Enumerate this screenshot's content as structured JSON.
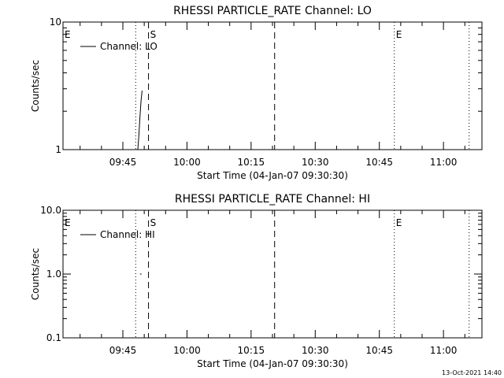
{
  "footer": {
    "timestamp": "13-Oct-2021 14:40"
  },
  "chart_data": [
    {
      "type": "line",
      "title": "RHESSI PARTICLE_RATE Channel: LO",
      "xlabel": "Start Time (04-Jan-07 09:30:30)",
      "ylabel": "Counts/sec",
      "yscale": "log",
      "ylim": [
        1,
        10
      ],
      "yticks": [
        1,
        10
      ],
      "ytick_labels": [
        "1",
        "10"
      ],
      "xlim": [
        "09:31",
        "11:09"
      ],
      "xticks": [
        "09:45",
        "10:00",
        "10:15",
        "10:30",
        "10:45",
        "11:00"
      ],
      "legend": {
        "label": "Channel: LO",
        "placement": "top-left"
      },
      "series": [
        {
          "name": "Channel: LO",
          "x": [
            "09:48:30",
            "09:48:45",
            "09:49:00",
            "09:49:15",
            "09:49:30"
          ],
          "y": [
            1.0,
            1.3,
            1.8,
            2.4,
            2.9
          ]
        }
      ],
      "markers": [
        {
          "label": "E",
          "time": "09:31:00",
          "style": "none"
        },
        {
          "label": "",
          "time": "09:48:00",
          "style": "dotted"
        },
        {
          "label": "S",
          "time": "09:51:00",
          "style": "dashed"
        },
        {
          "label": "",
          "time": "10:20:30",
          "style": "dashed"
        },
        {
          "label": "E",
          "time": "10:48:30",
          "style": "dotted"
        },
        {
          "label": "",
          "time": "11:06:00",
          "style": "dotted"
        }
      ]
    },
    {
      "type": "line",
      "title": "RHESSI PARTICLE_RATE Channel: HI",
      "xlabel": "Start Time (04-Jan-07 09:30:30)",
      "ylabel": "Counts/sec",
      "yscale": "log",
      "ylim": [
        0.1,
        10
      ],
      "yticks": [
        0.1,
        1,
        10
      ],
      "ytick_labels": [
        "0.1",
        "1.0",
        "10.0"
      ],
      "xlim": [
        "09:31",
        "11:09"
      ],
      "xticks": [
        "09:45",
        "10:00",
        "10:15",
        "10:30",
        "10:45",
        "11:00"
      ],
      "legend": {
        "label": "Channel: HI",
        "placement": "top-left"
      },
      "series": [
        {
          "name": "Channel: HI",
          "x": [
            "09:49:00"
          ],
          "y": [
            1.0
          ]
        }
      ],
      "markers": [
        {
          "label": "E",
          "time": "09:31:00",
          "style": "none"
        },
        {
          "label": "",
          "time": "09:48:00",
          "style": "dotted"
        },
        {
          "label": "S",
          "time": "09:51:00",
          "style": "dashed"
        },
        {
          "label": "",
          "time": "10:20:30",
          "style": "dashed"
        },
        {
          "label": "E",
          "time": "10:48:30",
          "style": "dotted"
        },
        {
          "label": "",
          "time": "11:06:00",
          "style": "dotted"
        }
      ]
    }
  ]
}
